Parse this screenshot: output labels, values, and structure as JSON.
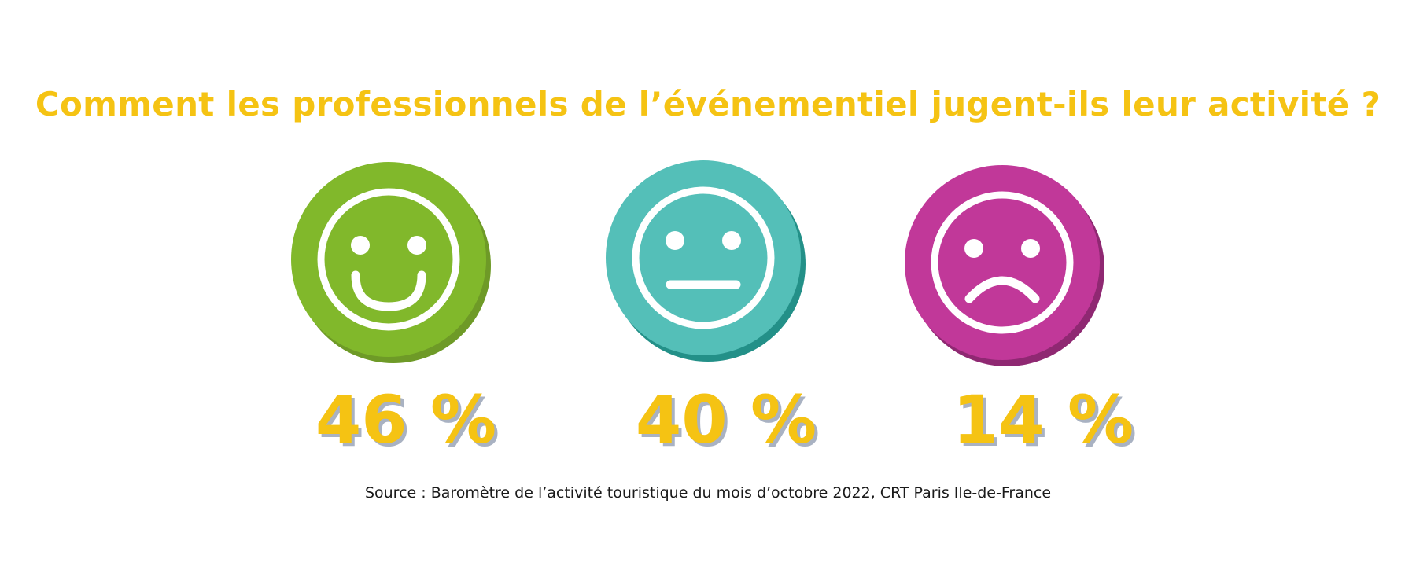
{
  "title": "Comment les professionnels de l’événementiel jugent-ils leur activité ?",
  "colors": {
    "title": "#F5C313",
    "percent_text": "#F5C313",
    "percent_shadow": "#A9B2C2",
    "source_text": "#1a1a1a"
  },
  "items": [
    {
      "mood": "happy",
      "icon": "happy-face-icon",
      "face_color": "#81B82B",
      "shadow_color": "#6E9A27",
      "share": 46,
      "percent_label": "46 %"
    },
    {
      "mood": "neutral",
      "icon": "neutral-face-icon",
      "face_color": "#54BFB8",
      "shadow_color": "#239088",
      "share": 40,
      "percent_label": "40 %"
    },
    {
      "mood": "sad",
      "icon": "sad-face-icon",
      "face_color": "#C13899",
      "shadow_color": "#8F2872",
      "share": 14,
      "percent_label": "14 %"
    }
  ],
  "source": "Source : Baromètre de l’activité touristique du mois d’octobre 2022, CRT Paris Ile-de-France"
}
